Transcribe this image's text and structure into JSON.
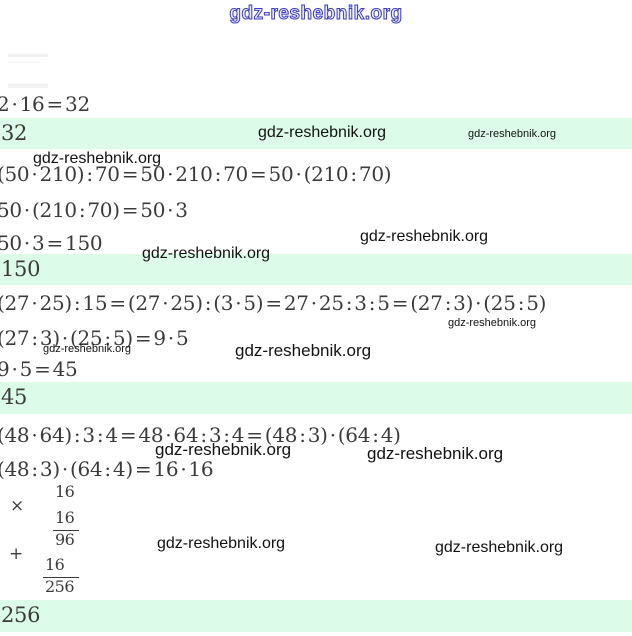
{
  "site": {
    "watermark": "gdz-reshebnik.org",
    "header_link": "gdz-reshebnik.org"
  },
  "colors": {
    "answer_row_bg": "#dcfbe9",
    "header_blue": "#3c3ccd",
    "math_text": "#3b3b3b",
    "watermark_text": "#121212"
  },
  "problems": [
    {
      "lines": [
        "2 · 16 = 32"
      ],
      "answer": "32"
    },
    {
      "lines": [
        "(50 · 210) : 70 = 50 · 210 : 70 = 50 · (210 : 70)",
        "50 · (210 : 70) = 50 · 3",
        "50 · 3 = 150"
      ],
      "answer": "150"
    },
    {
      "lines": [
        "(27 · 25) : 15 = (27 · 25) : (3 · 5) = 27 · 25 : 3 : 5 = (27 : 3) · (25 : 5)",
        "(27 : 3) · (25 : 5) = 9 · 5",
        "9 · 5 = 45"
      ],
      "answer": "45"
    },
    {
      "lines": [
        "(48 · 64) : 3 : 4 = 48 · 64 : 3 : 4 = (48 : 3) · (64 : 4)",
        "(48 : 3) · (64 : 4) = 16 · 16"
      ],
      "answer": "256"
    }
  ],
  "column_multiplication": {
    "multiply_sign": "×",
    "factor_top": "16",
    "factor_bottom": "16",
    "partial_product": "96",
    "plus_sign": "+",
    "shifted_addend": "16",
    "result": "256"
  }
}
